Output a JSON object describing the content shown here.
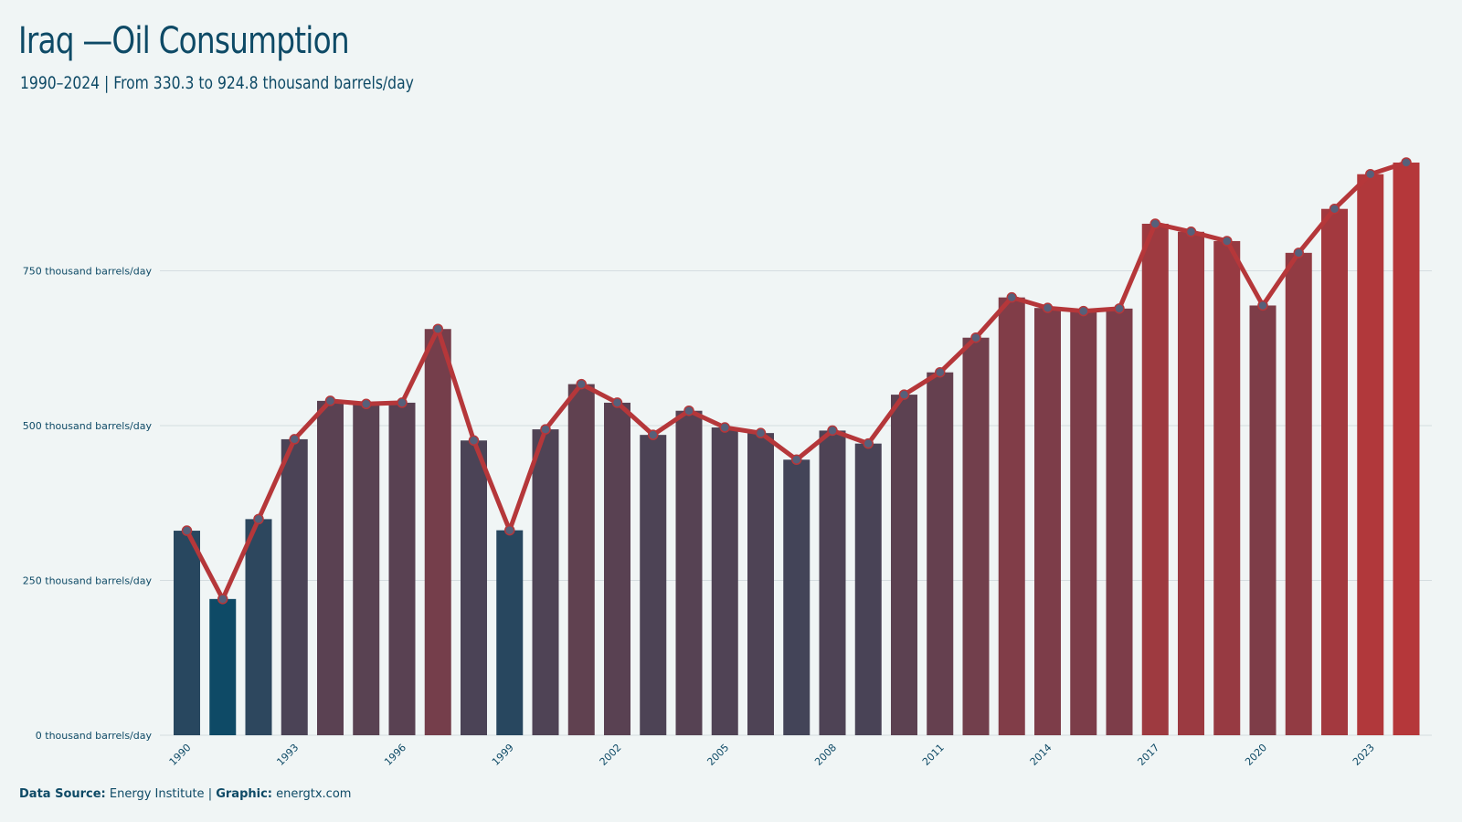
{
  "header": {
    "title": "Iraq —Oil Consumption",
    "subtitle": "1990–2024 | From 330.3 to 924.8 thousand barrels/day"
  },
  "footer": {
    "source_label": "Data Source:",
    "source_value": "Energy Institute",
    "separator": "|",
    "graphic_label": "Graphic:",
    "graphic_value": "energtx.com"
  },
  "colors": {
    "background": "#f0f5f5",
    "low": "#0e4a66",
    "high": "#b5373a",
    "line": "#b5373a",
    "marker": "#56607a",
    "grid": "#d5dde0",
    "text": "#0e4a66"
  },
  "chart_data": {
    "type": "bar",
    "unit": "thousand barrels/day",
    "x": [
      1990,
      1991,
      1992,
      1993,
      1994,
      1995,
      1996,
      1997,
      1998,
      1999,
      2000,
      2001,
      2002,
      2003,
      2004,
      2005,
      2006,
      2007,
      2008,
      2009,
      2010,
      2011,
      2012,
      2013,
      2014,
      2015,
      2016,
      2017,
      2018,
      2019,
      2020,
      2021,
      2022,
      2023,
      2024
    ],
    "values": [
      330.3,
      220,
      349,
      478,
      540,
      535,
      537,
      656,
      476,
      331,
      494,
      567,
      537,
      485,
      524,
      497,
      488,
      445,
      492,
      471,
      550,
      586,
      642,
      707,
      690,
      685,
      689,
      826,
      813,
      798,
      694,
      779,
      850,
      906,
      924.8
    ],
    "overlay_line": true,
    "ylim": [
      0,
      1000
    ],
    "yticks": [
      0,
      250,
      500,
      750
    ],
    "ytick_labels": [
      "0 thousand barrels/day",
      "250 thousand barrels/day",
      "500 thousand barrels/day",
      "750 thousand barrels/day"
    ],
    "xticks": [
      1990,
      1993,
      1996,
      1999,
      2002,
      2005,
      2008,
      2011,
      2014,
      2017,
      2020,
      2023
    ],
    "grid": "horizontal",
    "legend": "none"
  }
}
